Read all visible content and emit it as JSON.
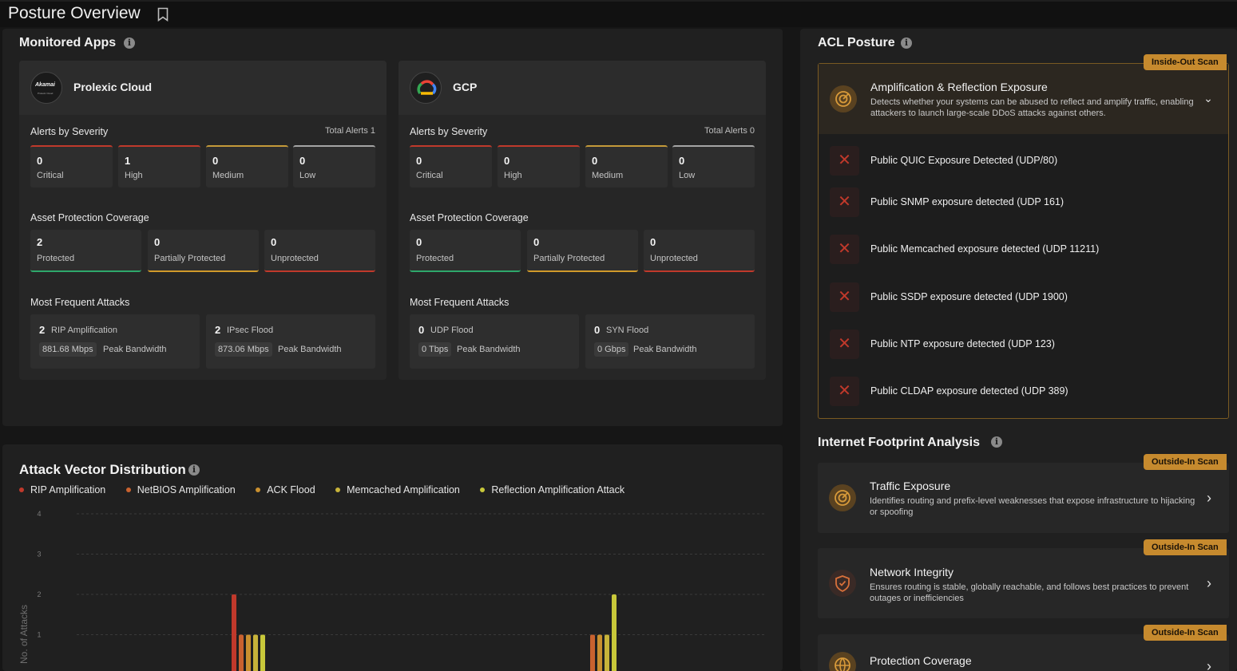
{
  "header": {
    "title": "Posture Overview"
  },
  "monitored_apps": {
    "title": "Monitored Apps",
    "apps": [
      {
        "name": "Prolexic Cloud",
        "logo_text": "Akamai",
        "logo_sub": "Prolexic Cloud",
        "alerts_title": "Alerts by Severity",
        "total_alerts": "Total Alerts 1",
        "severity": [
          {
            "num": "0",
            "label": "Critical"
          },
          {
            "num": "1",
            "label": "High"
          },
          {
            "num": "0",
            "label": "Medium"
          },
          {
            "num": "0",
            "label": "Low"
          }
        ],
        "coverage_title": "Asset Protection Coverage",
        "coverage": [
          {
            "num": "2",
            "label": "Protected"
          },
          {
            "num": "0",
            "label": "Partially Protected"
          },
          {
            "num": "0",
            "label": "Unprotected"
          }
        ],
        "attacks_title": "Most Frequent Attacks",
        "attacks": [
          {
            "count": "2",
            "name": "RIP Amplification",
            "bandwidth": "881.68 Mbps",
            "bw_label": "Peak Bandwidth"
          },
          {
            "count": "2",
            "name": "IPsec Flood",
            "bandwidth": "873.06 Mbps",
            "bw_label": "Peak Bandwidth"
          }
        ]
      },
      {
        "name": "GCP",
        "alerts_title": "Alerts by Severity",
        "total_alerts": "Total Alerts 0",
        "severity": [
          {
            "num": "0",
            "label": "Critical"
          },
          {
            "num": "0",
            "label": "High"
          },
          {
            "num": "0",
            "label": "Medium"
          },
          {
            "num": "0",
            "label": "Low"
          }
        ],
        "coverage_title": "Asset Protection Coverage",
        "coverage": [
          {
            "num": "0",
            "label": "Protected"
          },
          {
            "num": "0",
            "label": "Partially Protected"
          },
          {
            "num": "0",
            "label": "Unprotected"
          }
        ],
        "attacks_title": "Most Frequent Attacks",
        "attacks": [
          {
            "count": "0",
            "name": "UDP Flood",
            "bandwidth": "0 Tbps",
            "bw_label": "Peak Bandwidth"
          },
          {
            "count": "0",
            "name": "SYN Flood",
            "bandwidth": "0 Gbps",
            "bw_label": "Peak Bandwidth"
          }
        ]
      }
    ]
  },
  "colors": {
    "critical": "#c0392b",
    "medium": "#c49a3a",
    "low": "#a5a5a5",
    "protected": "#2ea86b",
    "partial": "#d09a2a",
    "unprotected": "#c0392b",
    "badge": "#c68a2e"
  },
  "chart_data": {
    "type": "bar",
    "title": "Attack Vector Distribution",
    "ylabel": "No. of Attacks",
    "ylim": [
      0,
      4
    ],
    "yticks": [
      "1",
      "2",
      "3",
      "4"
    ],
    "grid": true,
    "legend_placement": "top-left",
    "series": [
      {
        "name": "RIP Amplification",
        "color": "#c0392b",
        "values": [
          2,
          0
        ]
      },
      {
        "name": "NetBIOS Amplification",
        "color": "#c9622f",
        "values": [
          1,
          1
        ]
      },
      {
        "name": "ACK Flood",
        "color": "#c9902f",
        "values": [
          1,
          1
        ]
      },
      {
        "name": "Memcached Amplification",
        "color": "#c7b33a",
        "values": [
          1,
          1
        ]
      },
      {
        "name": "Reflection Amplification Attack",
        "color": "#c8c83a",
        "values": [
          1,
          2
        ]
      }
    ]
  },
  "acl_posture": {
    "title": "ACL Posture",
    "badge": "Inside-Out Scan",
    "card_title": "Amplification & Reflection Exposure",
    "card_desc": "Detects whether your systems can be abused to reflect and amplify traffic, enabling attackers to launch large-scale DDoS attacks against others.",
    "items": [
      "Public QUIC Exposure Detected (UDP/80)",
      "Public SNMP exposure detected (UDP 161)",
      "Public Memcached exposure detected (UDP 11211)",
      "Public SSDP exposure detected (UDP 1900)",
      "Public NTP exposure detected (UDP 123)",
      "Public CLDAP exposure detected (UDP 389)"
    ]
  },
  "internet_footprint": {
    "title": "Internet Footprint Analysis",
    "cards": [
      {
        "badge": "Outside-In Scan",
        "title": "Traffic Exposure",
        "desc": "Identifies routing and prefix-level weaknesses that expose infrastructure to hijacking or spoofing"
      },
      {
        "badge": "Outside-In Scan",
        "title": "Network Integrity",
        "desc": "Ensures routing is stable, globally reachable, and follows best practices to prevent outages or inefficiencies"
      },
      {
        "badge": "Outside-In Scan",
        "title": "Protection Coverage",
        "desc": ""
      }
    ]
  }
}
